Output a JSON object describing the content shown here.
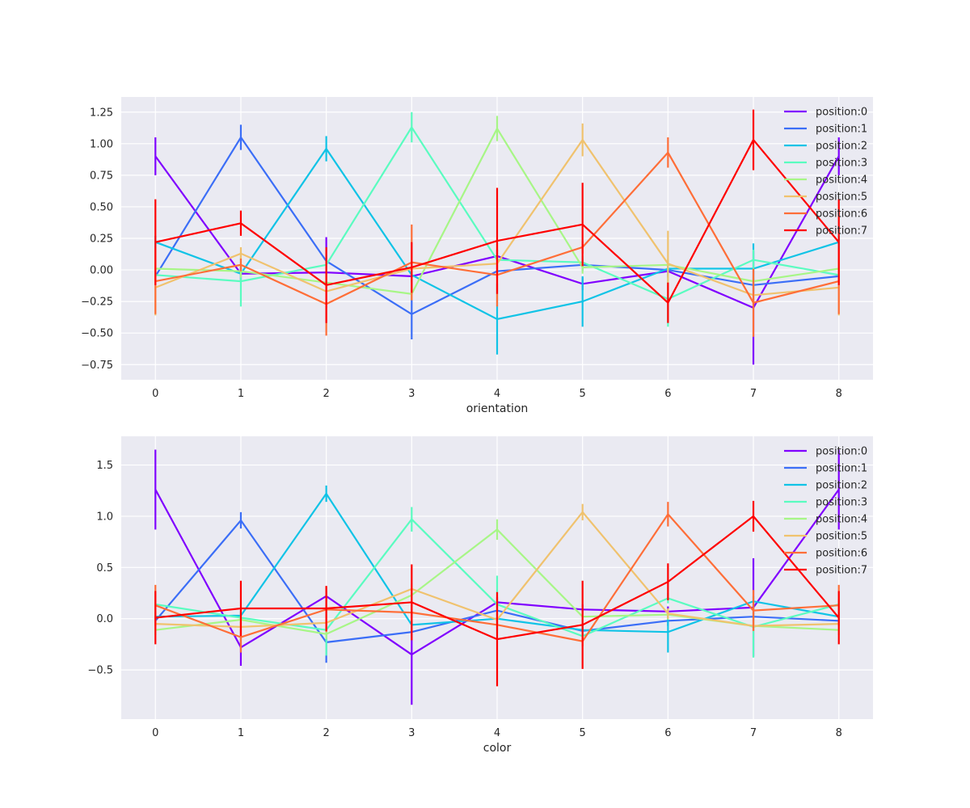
{
  "chart_data": [
    {
      "type": "line",
      "xlabel": "orientation",
      "ylabel": "",
      "xlim": [
        -0.4,
        8.4
      ],
      "ylim": [
        -0.87,
        1.37
      ],
      "x": [
        0,
        1,
        2,
        3,
        4,
        5,
        6,
        7,
        8
      ],
      "xticks": [
        "0",
        "1",
        "2",
        "3",
        "4",
        "5",
        "6",
        "7",
        "8"
      ],
      "yticks": [
        -0.75,
        -0.5,
        -0.25,
        0.0,
        0.25,
        0.5,
        0.75,
        1.0,
        1.25
      ],
      "ytick_labels": [
        "−0.75",
        "−0.50",
        "−0.25",
        "0.00",
        "0.25",
        "0.50",
        "0.75",
        "1.00",
        "1.25"
      ],
      "grid": true,
      "legend_position": "top-right",
      "series": [
        {
          "name": "position:0",
          "color": "#8000ff",
          "values": [
            0.9,
            -0.03,
            -0.02,
            -0.05,
            0.11,
            -0.11,
            -0.01,
            -0.3,
            0.9
          ],
          "errors": [
            0.15,
            0.05,
            0.28,
            0.05,
            0.05,
            0.05,
            0.05,
            0.45,
            0.15
          ]
        },
        {
          "name": "position:1",
          "color": "#3b6ef7",
          "values": [
            -0.05,
            1.05,
            0.07,
            -0.35,
            -0.01,
            0.04,
            0.0,
            -0.12,
            -0.05
          ],
          "errors": [
            0.05,
            0.1,
            0.05,
            0.2,
            0.05,
            0.05,
            0.05,
            0.05,
            0.05
          ]
        },
        {
          "name": "position:2",
          "color": "#10c3e6",
          "values": [
            0.22,
            -0.03,
            0.96,
            -0.04,
            -0.39,
            -0.25,
            0.01,
            0.01,
            0.22
          ],
          "errors": [
            0.05,
            0.05,
            0.1,
            0.05,
            0.28,
            0.2,
            0.05,
            0.2,
            0.05
          ]
        },
        {
          "name": "position:3",
          "color": "#5afcc0",
          "values": [
            -0.04,
            -0.09,
            0.04,
            1.13,
            0.08,
            0.06,
            -0.23,
            0.08,
            -0.04
          ],
          "errors": [
            0.05,
            0.2,
            0.05,
            0.12,
            0.05,
            0.05,
            0.22,
            0.08,
            0.05
          ]
        },
        {
          "name": "position:4",
          "color": "#a7f686",
          "values": [
            0.01,
            -0.01,
            -0.1,
            -0.19,
            1.12,
            0.02,
            0.04,
            -0.09,
            0.01
          ],
          "errors": [
            0.05,
            0.05,
            0.05,
            0.05,
            0.1,
            0.05,
            0.05,
            0.05,
            0.05
          ]
        },
        {
          "name": "position:5",
          "color": "#f0c26e",
          "values": [
            -0.14,
            0.13,
            -0.17,
            0.01,
            0.05,
            1.03,
            0.05,
            -0.2,
            -0.14
          ],
          "errors": [
            0.22,
            0.05,
            0.05,
            0.05,
            0.05,
            0.13,
            0.26,
            0.05,
            0.22
          ]
        },
        {
          "name": "position:6",
          "color": "#ff6e38",
          "values": [
            -0.09,
            0.04,
            -0.27,
            0.06,
            -0.04,
            0.18,
            0.93,
            -0.26,
            -0.09
          ],
          "errors": [
            0.26,
            0.05,
            0.25,
            0.3,
            0.25,
            0.05,
            0.12,
            0.27,
            0.26
          ]
        },
        {
          "name": "position:7",
          "color": "#ff0000",
          "values": [
            0.22,
            0.37,
            -0.12,
            0.02,
            0.23,
            0.36,
            -0.26,
            1.03,
            0.22
          ],
          "errors": [
            0.34,
            0.1,
            0.3,
            0.2,
            0.42,
            0.33,
            0.16,
            0.24,
            0.34
          ]
        }
      ]
    },
    {
      "type": "line",
      "xlabel": "color",
      "ylabel": "",
      "xlim": [
        -0.4,
        8.4
      ],
      "ylim": [
        -0.98,
        1.78
      ],
      "x": [
        0,
        1,
        2,
        3,
        4,
        5,
        6,
        7,
        8
      ],
      "xticks": [
        "0",
        "1",
        "2",
        "3",
        "4",
        "5",
        "6",
        "7",
        "8"
      ],
      "yticks": [
        -0.5,
        0.0,
        0.5,
        1.0,
        1.5
      ],
      "ytick_labels": [
        "−0.5",
        "0.0",
        "0.5",
        "1.0",
        "1.5"
      ],
      "grid": true,
      "legend_position": "top-right",
      "series": [
        {
          "name": "position:0",
          "color": "#8000ff",
          "values": [
            1.26,
            -0.28,
            0.22,
            -0.35,
            0.16,
            0.09,
            0.07,
            0.11,
            1.26
          ],
          "errors": [
            0.39,
            0.18,
            0.05,
            0.49,
            0.05,
            0.05,
            0.05,
            0.48,
            0.39
          ]
        },
        {
          "name": "position:1",
          "color": "#3b6ef7",
          "values": [
            -0.02,
            0.96,
            -0.23,
            -0.13,
            0.08,
            -0.12,
            -0.02,
            0.02,
            -0.02
          ],
          "errors": [
            0.05,
            0.08,
            0.2,
            0.05,
            0.05,
            0.05,
            0.05,
            0.05,
            0.05
          ]
        },
        {
          "name": "position:2",
          "color": "#10c3e6",
          "values": [
            0.02,
            0.03,
            1.22,
            -0.06,
            0.0,
            -0.11,
            -0.13,
            0.17,
            0.02
          ],
          "errors": [
            0.05,
            0.05,
            0.08,
            0.05,
            0.05,
            0.05,
            0.2,
            0.05,
            0.05
          ]
        },
        {
          "name": "position:3",
          "color": "#5afcc0",
          "values": [
            0.14,
            0.01,
            -0.11,
            0.97,
            0.14,
            -0.17,
            0.2,
            -0.08,
            0.14
          ],
          "errors": [
            0.05,
            0.05,
            0.25,
            0.12,
            0.28,
            0.05,
            0.05,
            0.3,
            0.05
          ]
        },
        {
          "name": "position:4",
          "color": "#a7f686",
          "values": [
            -0.11,
            -0.01,
            -0.15,
            0.23,
            0.87,
            0.02,
            0.04,
            -0.07,
            -0.11
          ],
          "errors": [
            0.05,
            0.05,
            0.05,
            0.05,
            0.1,
            0.05,
            0.05,
            0.05,
            0.05
          ]
        },
        {
          "name": "position:5",
          "color": "#f0c26e",
          "values": [
            -0.05,
            -0.08,
            -0.04,
            0.29,
            -0.01,
            1.04,
            0.05,
            -0.07,
            -0.05
          ],
          "errors": [
            0.05,
            0.05,
            0.05,
            0.05,
            0.05,
            0.08,
            0.05,
            0.05,
            0.05
          ]
        },
        {
          "name": "position:6",
          "color": "#ff6e38",
          "values": [
            0.13,
            -0.18,
            0.09,
            0.06,
            -0.06,
            -0.22,
            1.02,
            0.08,
            0.13
          ],
          "errors": [
            0.2,
            0.15,
            0.22,
            0.12,
            0.05,
            0.05,
            0.12,
            0.2,
            0.2
          ]
        },
        {
          "name": "position:7",
          "color": "#ff0000",
          "values": [
            0.01,
            0.1,
            0.1,
            0.16,
            -0.2,
            -0.06,
            0.36,
            1.0,
            0.01
          ],
          "errors": [
            0.26,
            0.27,
            0.22,
            0.37,
            0.46,
            0.43,
            0.18,
            0.15,
            0.26
          ]
        }
      ]
    }
  ]
}
